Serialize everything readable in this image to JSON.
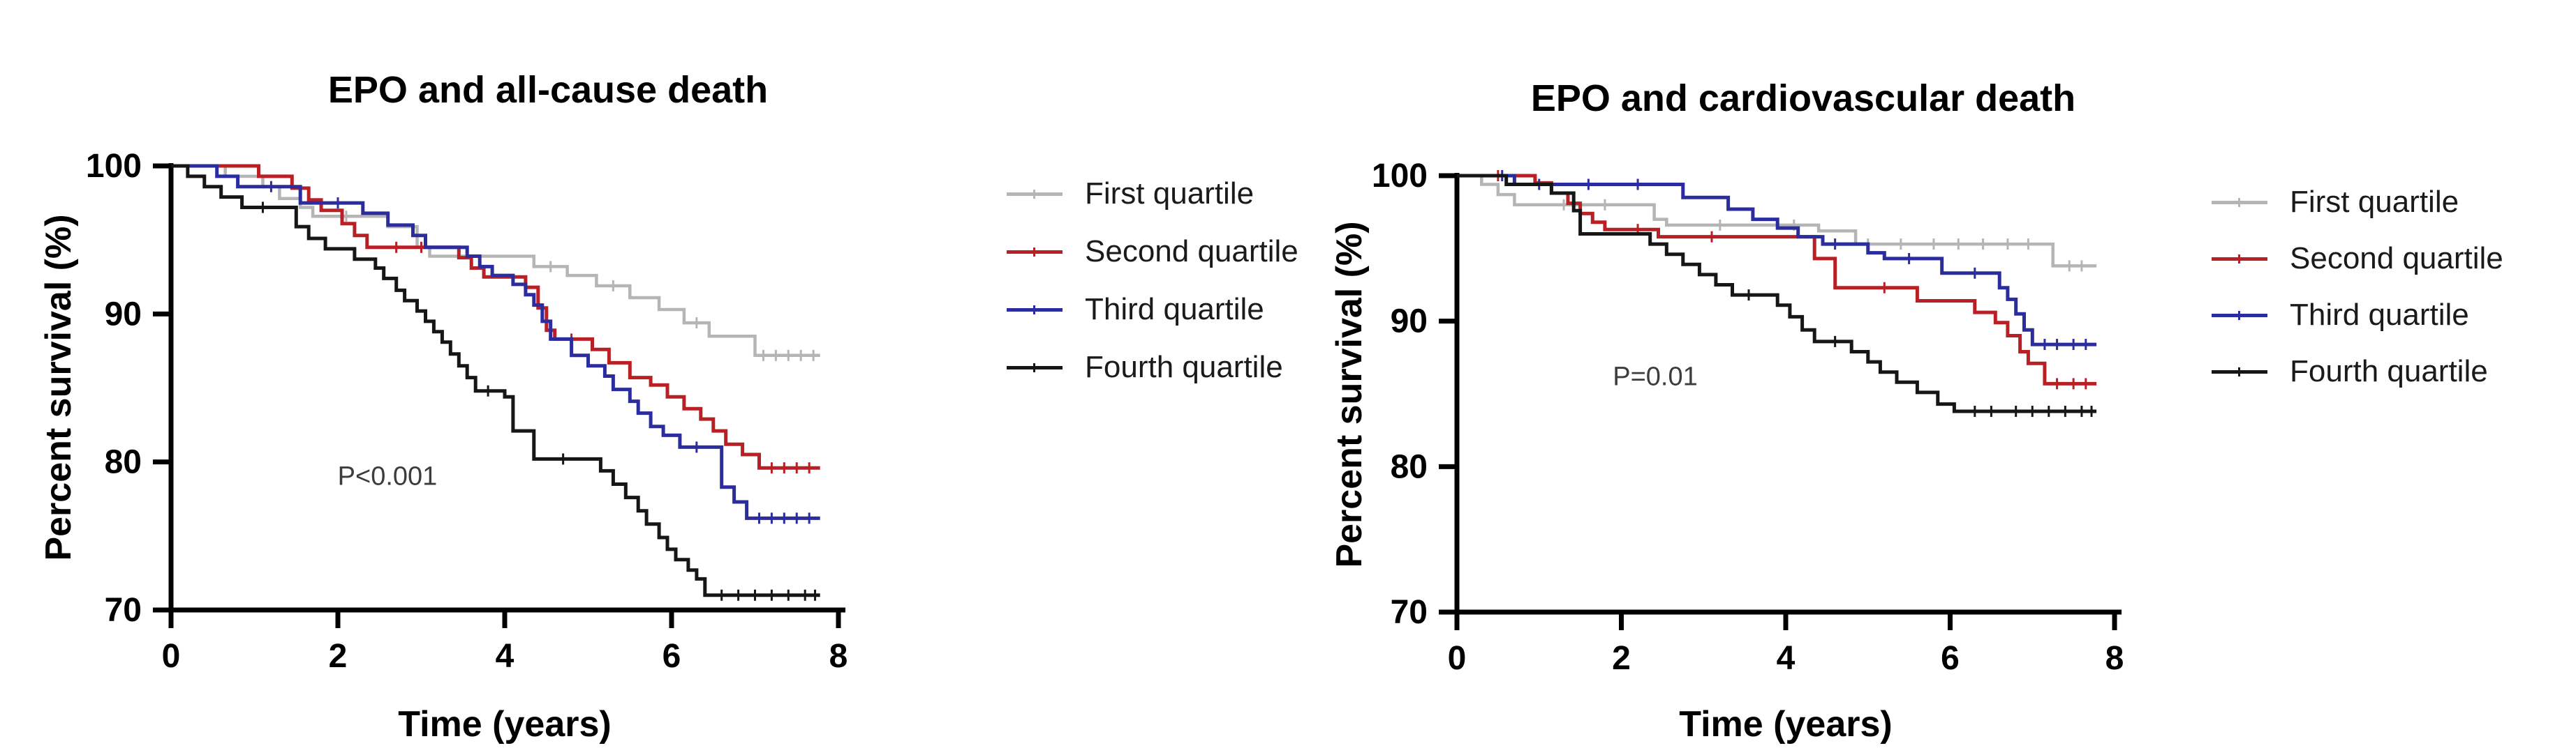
{
  "figure_background": "#ffffff",
  "chart_data": [
    {
      "type": "line",
      "subtype": "kaplan-meier-step",
      "title": "EPO and all-cause death",
      "xlabel": "Time (years)",
      "ylabel": "Percent survival (%)",
      "xlim": [
        0,
        8
      ],
      "ylim": [
        70,
        100
      ],
      "xticks": [
        0,
        2,
        4,
        6,
        8
      ],
      "yticks": [
        100,
        90,
        80,
        70
      ],
      "grid": false,
      "legend_position": "right-of-plot",
      "annotation": "P<0.001",
      "annotation_xy": [
        2.6,
        79.0
      ],
      "series": [
        {
          "name": "First quartile",
          "color": "#b5b5b5",
          "points": [
            [
              0,
              100
            ],
            [
              0.65,
              99.3
            ],
            [
              1.1,
              98.6
            ],
            [
              1.3,
              97.8
            ],
            [
              1.55,
              97.2
            ],
            [
              1.7,
              96.6
            ],
            [
              2.6,
              95.9
            ],
            [
              2.95,
              94.5
            ],
            [
              3.1,
              93.9
            ],
            [
              4.35,
              93.2
            ],
            [
              4.75,
              92.6
            ],
            [
              5.1,
              91.9
            ],
            [
              5.5,
              91.1
            ],
            [
              5.85,
              90.3
            ],
            [
              6.15,
              89.4
            ],
            [
              6.45,
              88.5
            ],
            [
              7.0,
              87.2
            ],
            [
              7.78,
              87.2
            ]
          ],
          "censor_times": [
            2.1,
            4.55,
            5.3,
            6.3,
            7.1,
            7.25,
            7.4,
            7.55,
            7.7
          ]
        },
        {
          "name": "Second quartile",
          "color": "#b92025",
          "points": [
            [
              0,
              100
            ],
            [
              1.05,
              99.3
            ],
            [
              1.45,
              98.5
            ],
            [
              1.65,
              97.7
            ],
            [
              1.8,
              97.0
            ],
            [
              2.05,
              96.1
            ],
            [
              2.2,
              95.3
            ],
            [
              2.35,
              94.5
            ],
            [
              3.45,
              93.8
            ],
            [
              3.6,
              93.1
            ],
            [
              3.75,
              92.5
            ],
            [
              4.25,
              91.8
            ],
            [
              4.4,
              90.4
            ],
            [
              4.5,
              88.9
            ],
            [
              4.6,
              88.3
            ],
            [
              5.05,
              87.6
            ],
            [
              5.25,
              86.7
            ],
            [
              5.5,
              85.7
            ],
            [
              5.75,
              85.2
            ],
            [
              5.95,
              84.4
            ],
            [
              6.15,
              83.6
            ],
            [
              6.35,
              82.9
            ],
            [
              6.5,
              82.1
            ],
            [
              6.65,
              81.2
            ],
            [
              6.85,
              80.5
            ],
            [
              7.05,
              79.6
            ],
            [
              7.78,
              79.6
            ]
          ],
          "censor_times": [
            2.7,
            3.0,
            4.8,
            7.2,
            7.35,
            7.5,
            7.65
          ]
        },
        {
          "name": "Third quartile",
          "color": "#2b2d9e",
          "points": [
            [
              0,
              100
            ],
            [
              0.55,
              99.3
            ],
            [
              0.8,
              98.6
            ],
            [
              1.55,
              97.5
            ],
            [
              2.3,
              96.8
            ],
            [
              2.6,
              96.0
            ],
            [
              2.9,
              95.3
            ],
            [
              3.05,
              94.5
            ],
            [
              3.55,
              93.9
            ],
            [
              3.7,
              93.2
            ],
            [
              3.85,
              92.6
            ],
            [
              4.1,
              92.0
            ],
            [
              4.25,
              91.3
            ],
            [
              4.35,
              90.6
            ],
            [
              4.45,
              89.5
            ],
            [
              4.55,
              88.3
            ],
            [
              4.8,
              87.2
            ],
            [
              5.0,
              86.5
            ],
            [
              5.2,
              85.8
            ],
            [
              5.3,
              84.9
            ],
            [
              5.5,
              84.1
            ],
            [
              5.6,
              83.3
            ],
            [
              5.75,
              82.4
            ],
            [
              5.9,
              81.8
            ],
            [
              6.1,
              81.0
            ],
            [
              6.6,
              78.3
            ],
            [
              6.75,
              77.3
            ],
            [
              6.9,
              76.2
            ],
            [
              7.78,
              76.2
            ]
          ],
          "censor_times": [
            1.2,
            2.0,
            6.3,
            7.05,
            7.2,
            7.35,
            7.5,
            7.65
          ]
        },
        {
          "name": "Fourth quartile",
          "color": "#161616",
          "points": [
            [
              0,
              100
            ],
            [
              0.2,
              99.3
            ],
            [
              0.4,
              98.6
            ],
            [
              0.6,
              97.9
            ],
            [
              0.85,
              97.2
            ],
            [
              1.5,
              95.9
            ],
            [
              1.65,
              95.1
            ],
            [
              1.85,
              94.4
            ],
            [
              2.2,
              93.7
            ],
            [
              2.45,
              93.1
            ],
            [
              2.55,
              92.4
            ],
            [
              2.7,
              91.6
            ],
            [
              2.8,
              90.9
            ],
            [
              2.95,
              90.2
            ],
            [
              3.05,
              89.5
            ],
            [
              3.15,
              88.8
            ],
            [
              3.25,
              88.1
            ],
            [
              3.35,
              87.3
            ],
            [
              3.45,
              86.5
            ],
            [
              3.55,
              85.7
            ],
            [
              3.65,
              84.8
            ],
            [
              4.0,
              84.4
            ],
            [
              4.1,
              82.1
            ],
            [
              4.35,
              80.2
            ],
            [
              5.15,
              79.4
            ],
            [
              5.3,
              78.5
            ],
            [
              5.45,
              77.6
            ],
            [
              5.6,
              76.7
            ],
            [
              5.7,
              75.8
            ],
            [
              5.85,
              74.9
            ],
            [
              5.95,
              74.1
            ],
            [
              6.05,
              73.4
            ],
            [
              6.2,
              72.7
            ],
            [
              6.3,
              72.1
            ],
            [
              6.4,
              71.0
            ],
            [
              7.78,
              71.0
            ]
          ],
          "censor_times": [
            1.1,
            3.8,
            4.7,
            6.6,
            6.8,
            7.0,
            7.2,
            7.4,
            7.6,
            7.72
          ]
        }
      ]
    },
    {
      "type": "line",
      "subtype": "kaplan-meier-step",
      "title": "EPO and cardiovascular death",
      "xlabel": "Time (years)",
      "ylabel": "Percent survival (%)",
      "xlim": [
        0,
        8
      ],
      "ylim": [
        70,
        100
      ],
      "xticks": [
        0,
        2,
        4,
        6,
        8
      ],
      "yticks": [
        100,
        90,
        80,
        70
      ],
      "grid": false,
      "legend_position": "right-of-plot",
      "annotation": "P=0.01",
      "annotation_xy": [
        2.4,
        86.2
      ],
      "series": [
        {
          "name": "First quartile",
          "color": "#b5b5b5",
          "points": [
            [
              0,
              100
            ],
            [
              0.3,
              99.4
            ],
            [
              0.5,
              98.7
            ],
            [
              0.7,
              98.0
            ],
            [
              2.4,
              97.0
            ],
            [
              2.55,
              96.6
            ],
            [
              4.4,
              96.2
            ],
            [
              4.85,
              95.3
            ],
            [
              7.25,
              93.8
            ],
            [
              7.78,
              93.8
            ]
          ],
          "censor_times": [
            1.3,
            1.8,
            3.2,
            4.1,
            5.0,
            5.4,
            5.8,
            6.1,
            6.4,
            6.7,
            6.95,
            7.45,
            7.6
          ]
        },
        {
          "name": "Second quartile",
          "color": "#b92025",
          "points": [
            [
              0,
              100
            ],
            [
              0.95,
              99.5
            ],
            [
              1.15,
              98.8
            ],
            [
              1.35,
              98.1
            ],
            [
              1.5,
              97.4
            ],
            [
              1.65,
              96.8
            ],
            [
              1.8,
              96.3
            ],
            [
              2.45,
              95.8
            ],
            [
              4.35,
              94.3
            ],
            [
              4.6,
              92.3
            ],
            [
              5.6,
              91.4
            ],
            [
              6.3,
              90.6
            ],
            [
              6.55,
              89.9
            ],
            [
              6.7,
              89.0
            ],
            [
              6.85,
              87.9
            ],
            [
              6.95,
              87.1
            ],
            [
              7.15,
              85.7
            ],
            [
              7.78,
              85.7
            ]
          ],
          "censor_times": [
            0.5,
            2.2,
            3.1,
            5.2,
            7.3,
            7.5,
            7.65
          ]
        },
        {
          "name": "Third quartile",
          "color": "#2b2d9e",
          "points": [
            [
              0,
              100
            ],
            [
              0.7,
              99.4
            ],
            [
              2.75,
              98.5
            ],
            [
              3.3,
              97.7
            ],
            [
              3.6,
              97.0
            ],
            [
              3.9,
              96.4
            ],
            [
              4.15,
              95.8
            ],
            [
              4.45,
              95.3
            ],
            [
              5.0,
              94.7
            ],
            [
              5.2,
              94.3
            ],
            [
              5.9,
              93.3
            ],
            [
              6.6,
              92.3
            ],
            [
              6.7,
              91.5
            ],
            [
              6.8,
              90.5
            ],
            [
              6.9,
              89.4
            ],
            [
              7.0,
              88.4
            ],
            [
              7.78,
              88.4
            ]
          ],
          "censor_times": [
            0.55,
            1.0,
            1.6,
            2.2,
            4.6,
            5.5,
            6.3,
            7.15,
            7.3,
            7.5,
            7.65
          ]
        },
        {
          "name": "Fourth quartile",
          "color": "#161616",
          "points": [
            [
              0,
              100
            ],
            [
              0.6,
              99.4
            ],
            [
              1.15,
              98.8
            ],
            [
              1.42,
              97.6
            ],
            [
              1.5,
              96.0
            ],
            [
              2.35,
              95.3
            ],
            [
              2.55,
              94.6
            ],
            [
              2.75,
              93.9
            ],
            [
              2.95,
              93.2
            ],
            [
              3.15,
              92.5
            ],
            [
              3.35,
              91.8
            ],
            [
              3.9,
              91.1
            ],
            [
              4.05,
              90.3
            ],
            [
              4.2,
              89.4
            ],
            [
              4.35,
              88.6
            ],
            [
              4.8,
              87.9
            ],
            [
              5.0,
              87.2
            ],
            [
              5.15,
              86.5
            ],
            [
              5.35,
              85.8
            ],
            [
              5.6,
              85.1
            ],
            [
              5.85,
              84.3
            ],
            [
              6.05,
              83.8
            ],
            [
              7.78,
              83.8
            ]
          ],
          "censor_times": [
            3.55,
            4.6,
            6.3,
            6.5,
            6.8,
            7.0,
            7.2,
            7.4,
            7.6,
            7.72
          ]
        }
      ]
    }
  ]
}
